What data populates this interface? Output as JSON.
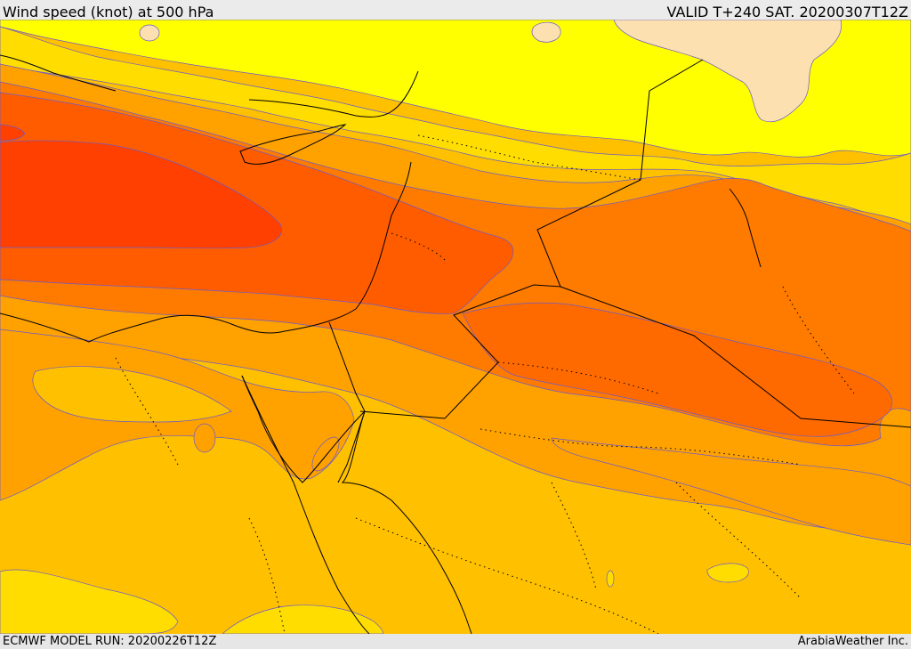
{
  "header": {
    "title": "Wind speed (knot) at 500 hPa",
    "valid_time": "VALID T+240 SAT. 20200307T12Z"
  },
  "footer": {
    "model_run": "ECMWF MODEL RUN: 20200226T12Z",
    "credit": "ArabiaWeather Inc."
  },
  "colors": {
    "band_lightest": "#fde0b0",
    "band_yellow": "#ffff00",
    "band_gold": "#ffdd00",
    "band_amber": "#ffc000",
    "band_orange": "#ffa200",
    "band_dark_orange": "#ff7b00",
    "band_red_orange": "#ff5c00",
    "band_red": "#ff4000",
    "contour_line": "#6a5acd",
    "coastline": "#000000"
  }
}
